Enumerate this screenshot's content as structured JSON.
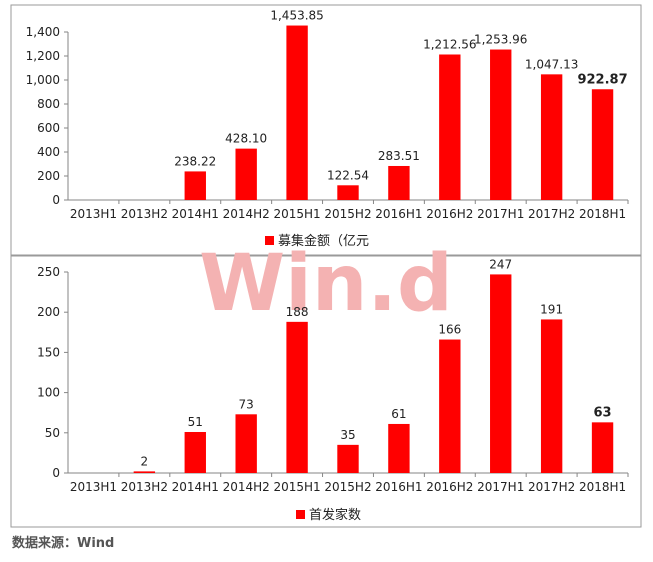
{
  "watermark": "Win.d",
  "source": "数据来源：Wind",
  "colors": {
    "bar": "#ff0000",
    "axis": "#868686",
    "frame": "#9a9a9a",
    "text": "#222222",
    "watermark": "#f4b2b2"
  },
  "chart_data": [
    {
      "type": "bar",
      "categories": [
        "2013H1",
        "2013H2",
        "2014H1",
        "2014H2",
        "2015H1",
        "2015H2",
        "2016H1",
        "2016H2",
        "2017H1",
        "2017H2",
        "2018H1"
      ],
      "series": [
        {
          "name": "募集金额（亿元",
          "values": [
            0,
            0,
            238.22,
            428.1,
            1453.85,
            122.54,
            283.51,
            1212.56,
            1253.96,
            1047.13,
            922.87
          ]
        }
      ],
      "data_labels": [
        "",
        "",
        "238.22",
        "428.10",
        "1,453.85",
        "122.54",
        "283.51",
        "1,212.56",
        "1,253.96",
        "1,047.13",
        "922.87"
      ],
      "bold_label_index": 10,
      "ylim": [
        0,
        1400
      ],
      "yticks": [
        0,
        200,
        400,
        600,
        800,
        1000,
        1200,
        1400
      ],
      "ytick_labels": [
        "0",
        "200",
        "400",
        "600",
        "800",
        "1,000",
        "1,200",
        "1,400"
      ],
      "legend_position": "bottom",
      "grid": false
    },
    {
      "type": "bar",
      "categories": [
        "2013H1",
        "2013H2",
        "2014H1",
        "2014H2",
        "2015H1",
        "2015H2",
        "2016H1",
        "2016H2",
        "2017H1",
        "2017H2",
        "2018H1"
      ],
      "series": [
        {
          "name": "首发家数",
          "values": [
            0,
            2,
            51,
            73,
            188,
            35,
            61,
            166,
            247,
            191,
            63
          ]
        }
      ],
      "data_labels": [
        "",
        "2",
        "51",
        "73",
        "188",
        "35",
        "61",
        "166",
        "247",
        "191",
        "63"
      ],
      "bold_label_index": 10,
      "ylim": [
        0,
        250
      ],
      "yticks": [
        0,
        50,
        100,
        150,
        200,
        250
      ],
      "ytick_labels": [
        "0",
        "50",
        "100",
        "150",
        "200",
        "250"
      ],
      "legend_position": "bottom",
      "grid": false
    }
  ]
}
